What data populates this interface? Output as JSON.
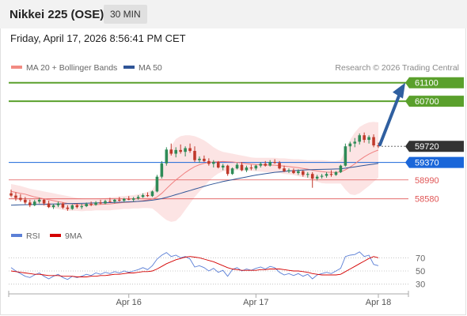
{
  "header": {
    "title": "Nikkei 225 (OSE)",
    "timeframe": "30 MIN"
  },
  "datetime": "Friday, April 17, 2026 8:56:41 PM CET",
  "legend": {
    "bb_label": "MA 20 + Bollinger Bands",
    "bb_color": "#f28b82",
    "ma50_label": "MA 50",
    "ma50_color": "#2f5597"
  },
  "credit": "Research © 2026 Trading Central",
  "rsi_legend": {
    "rsi_label": "RSI",
    "rsi_color": "#5b7fd6",
    "ma_label": "9MA",
    "ma_color": "#d40000"
  },
  "chart_data": {
    "type": "candlestick",
    "price_range": [
      58300,
      61250
    ],
    "levels": {
      "resistance": [
        61100,
        60700
      ],
      "current": 59720,
      "pivot": 59370,
      "support": [
        58990,
        58580
      ]
    },
    "level_labels": {
      "r2": "61100",
      "r1": "60700",
      "current": "59720",
      "pivot": "59370",
      "s1": "58990",
      "s2": "58580"
    },
    "colors": {
      "resistance": "#5aa02c",
      "pivot": "#1a66d9",
      "support": "#e05555",
      "current": "#333333",
      "up": "#2e8b57",
      "down": "#c0392b",
      "arrow": "#2f5fa0"
    },
    "x_labels": [
      "Apr 16",
      "Apr 17",
      "Apr 18"
    ],
    "ohlc": [
      [
        58700,
        58780,
        58620,
        58650
      ],
      [
        58650,
        58720,
        58540,
        58600
      ],
      [
        58600,
        58680,
        58520,
        58560
      ],
      [
        58560,
        58620,
        58460,
        58500
      ],
      [
        58500,
        58560,
        58400,
        58440
      ],
      [
        58440,
        58560,
        58420,
        58520
      ],
      [
        58520,
        58600,
        58480,
        58560
      ],
      [
        58560,
        58580,
        58440,
        58480
      ],
      [
        58480,
        58540,
        58380,
        58400
      ],
      [
        58400,
        58470,
        58360,
        58440
      ],
      [
        58440,
        58520,
        58400,
        58480
      ],
      [
        58480,
        58500,
        58360,
        58390
      ],
      [
        58390,
        58440,
        58320,
        58360
      ],
      [
        58360,
        58460,
        58340,
        58440
      ],
      [
        58440,
        58480,
        58370,
        58400
      ],
      [
        58400,
        58470,
        58360,
        58420
      ],
      [
        58420,
        58500,
        58400,
        58470
      ],
      [
        58470,
        58520,
        58420,
        58450
      ],
      [
        58450,
        58530,
        58430,
        58500
      ],
      [
        58500,
        58560,
        58460,
        58480
      ],
      [
        58480,
        58560,
        58460,
        58530
      ],
      [
        58530,
        58600,
        58500,
        58520
      ],
      [
        58520,
        58580,
        58480,
        58560
      ],
      [
        58560,
        58620,
        58520,
        58540
      ],
      [
        58540,
        58600,
        58500,
        58580
      ],
      [
        58580,
        58640,
        58550,
        58560
      ],
      [
        58560,
        58620,
        58520,
        58590
      ],
      [
        58590,
        58660,
        58560,
        58620
      ],
      [
        58620,
        58700,
        58600,
        58660
      ],
      [
        58660,
        58720,
        58620,
        58640
      ],
      [
        58640,
        58760,
        58620,
        58740
      ],
      [
        58740,
        59100,
        58720,
        59060
      ],
      [
        59060,
        59400,
        59020,
        59350
      ],
      [
        59350,
        59700,
        59300,
        59650
      ],
      [
        59650,
        59780,
        59520,
        59560
      ],
      [
        59560,
        59700,
        59480,
        59640
      ],
      [
        59640,
        59760,
        59560,
        59600
      ],
      [
        59600,
        59720,
        59500,
        59680
      ],
      [
        59680,
        59780,
        59580,
        59620
      ],
      [
        59620,
        59720,
        59380,
        59420
      ],
      [
        59420,
        59500,
        59360,
        59450
      ],
      [
        59450,
        59520,
        59380,
        59400
      ],
      [
        59400,
        59460,
        59300,
        59340
      ],
      [
        59340,
        59420,
        59260,
        59380
      ],
      [
        59380,
        59400,
        59240,
        59260
      ],
      [
        59260,
        59340,
        59200,
        59300
      ],
      [
        59300,
        59320,
        59080,
        59120
      ],
      [
        59120,
        59260,
        59100,
        59240
      ],
      [
        59240,
        59360,
        59220,
        59320
      ],
      [
        59320,
        59380,
        59180,
        59200
      ],
      [
        59200,
        59300,
        59160,
        59260
      ],
      [
        59260,
        59320,
        59200,
        59240
      ],
      [
        59240,
        59320,
        59200,
        59300
      ],
      [
        59300,
        59380,
        59260,
        59340
      ],
      [
        59340,
        59400,
        59280,
        59300
      ],
      [
        59300,
        59420,
        59280,
        59380
      ],
      [
        59380,
        59440,
        59340,
        59360
      ],
      [
        59360,
        59400,
        59220,
        59240
      ],
      [
        59240,
        59300,
        59160,
        59180
      ],
      [
        59180,
        59240,
        59140,
        59200
      ],
      [
        59200,
        59240,
        59120,
        59140
      ],
      [
        59140,
        59220,
        59100,
        59180
      ],
      [
        59180,
        59200,
        59060,
        59100
      ],
      [
        59100,
        59160,
        59040,
        59120
      ],
      [
        59120,
        59160,
        58820,
        59020
      ],
      [
        59020,
        59100,
        58980,
        59060
      ],
      [
        59060,
        59120,
        59020,
        59080
      ],
      [
        59080,
        59160,
        59040,
        59120
      ],
      [
        59120,
        59200,
        59060,
        59100
      ],
      [
        59100,
        59180,
        59080,
        59160
      ],
      [
        59160,
        59320,
        59140,
        59300
      ],
      [
        59300,
        59780,
        59280,
        59720
      ],
      [
        59720,
        59820,
        59600,
        59780
      ],
      [
        59780,
        59900,
        59700,
        59820
      ],
      [
        59820,
        60000,
        59760,
        59960
      ],
      [
        59960,
        60020,
        59800,
        59860
      ],
      [
        59860,
        59960,
        59780,
        59920
      ],
      [
        59920,
        59980,
        59700,
        59740
      ],
      [
        59740,
        59800,
        59680,
        59720
      ]
    ],
    "ma20": [
      58740,
      58720,
      58700,
      58680,
      58650,
      58620,
      58600,
      58580,
      58560,
      58540,
      58520,
      58500,
      58480,
      58470,
      58460,
      58450,
      58450,
      58450,
      58455,
      58460,
      58465,
      58470,
      58480,
      58490,
      58500,
      58505,
      58515,
      58525,
      58540,
      58555,
      58575,
      58620,
      58700,
      58800,
      58900,
      58990,
      59070,
      59150,
      59220,
      59280,
      59320,
      59350,
      59370,
      59380,
      59385,
      59390,
      59385,
      59380,
      59370,
      59360,
      59345,
      59335,
      59325,
      59320,
      59315,
      59312,
      59310,
      59300,
      59290,
      59280,
      59268,
      59255,
      59240,
      59225,
      59200,
      59185,
      59170,
      59160,
      59155,
      59155,
      59165,
      59210,
      59270,
      59340,
      59420,
      59490,
      59550,
      59600,
      59640
    ],
    "bb_upper": [
      58900,
      58880,
      58860,
      58830,
      58800,
      58780,
      58760,
      58740,
      58720,
      58700,
      58680,
      58660,
      58640,
      58620,
      58600,
      58590,
      58580,
      58580,
      58580,
      58590,
      58600,
      58610,
      58620,
      58630,
      58640,
      58650,
      58660,
      58680,
      58700,
      58730,
      58780,
      58950,
      59200,
      59480,
      59720,
      59880,
      59940,
      59960,
      59960,
      59940,
      59900,
      59850,
      59780,
      59700,
      59640,
      59600,
      59580,
      59560,
      59540,
      59520,
      59500,
      59480,
      59470,
      59470,
      59470,
      59470,
      59470,
      59460,
      59460,
      59450,
      59440,
      59440,
      59430,
      59420,
      59420,
      59420,
      59420,
      59410,
      59400,
      59400,
      59420,
      59640,
      59860,
      60020,
      60140,
      60200,
      60240,
      60250,
      60240
    ],
    "bb_lower": [
      58580,
      58560,
      58540,
      58530,
      58500,
      58460,
      58440,
      58420,
      58400,
      58380,
      58360,
      58340,
      58320,
      58320,
      58320,
      58310,
      58320,
      58320,
      58330,
      58330,
      58330,
      58330,
      58340,
      58350,
      58360,
      58360,
      58370,
      58370,
      58380,
      58380,
      58370,
      58290,
      58200,
      58120,
      58080,
      58100,
      58200,
      58340,
      58480,
      58620,
      58740,
      58850,
      58960,
      59060,
      59130,
      59180,
      59190,
      59200,
      59200,
      59200,
      59190,
      59190,
      59180,
      59170,
      59160,
      59155,
      59150,
      59140,
      59120,
      59110,
      59096,
      59070,
      59050,
      59030,
      58980,
      58950,
      58920,
      58910,
      58910,
      58910,
      58910,
      58780,
      58680,
      58660,
      58700,
      58780,
      58860,
      58950,
      59040
    ],
    "ma50": [
      58440,
      58445,
      58450,
      58452,
      58455,
      58458,
      58460,
      58462,
      58465,
      58468,
      58470,
      58472,
      58475,
      58478,
      58480,
      58482,
      58485,
      58488,
      58490,
      58492,
      58495,
      58498,
      58500,
      58505,
      58510,
      58515,
      58520,
      58525,
      58530,
      58540,
      58550,
      58565,
      58585,
      58610,
      58640,
      58670,
      58700,
      58730,
      58760,
      58790,
      58820,
      58850,
      58880,
      58905,
      58930,
      58955,
      58975,
      58995,
      59015,
      59035,
      59055,
      59075,
      59095,
      59110,
      59125,
      59140,
      59155,
      59165,
      59175,
      59185,
      59192,
      59198,
      59205,
      59210,
      59215,
      59218,
      59220,
      59222,
      59225,
      59228,
      59232,
      59245,
      59260,
      59275,
      59290,
      59305,
      59320,
      59335,
      59350
    ],
    "rsi_ticks": [
      70,
      50,
      30
    ],
    "rsi_range": [
      20,
      80
    ],
    "rsi": [
      55,
      50,
      46,
      42,
      40,
      44,
      47,
      42,
      38,
      42,
      45,
      40,
      37,
      42,
      40,
      42,
      45,
      43,
      47,
      45,
      48,
      46,
      49,
      47,
      50,
      48,
      50,
      52,
      55,
      52,
      58,
      68,
      74,
      78,
      72,
      74,
      70,
      72,
      68,
      56,
      58,
      55,
      50,
      54,
      48,
      51,
      42,
      52,
      55,
      50,
      53,
      51,
      54,
      56,
      53,
      57,
      55,
      48,
      44,
      46,
      43,
      46,
      42,
      45,
      38,
      44,
      46,
      48,
      46,
      50,
      54,
      72,
      74,
      75,
      79,
      72,
      74,
      60,
      58
    ],
    "rsi_ma": [
      50,
      49,
      48,
      47,
      46,
      45,
      45,
      44,
      43,
      43,
      43,
      42,
      42,
      42,
      41,
      41,
      41,
      42,
      42,
      43,
      43,
      44,
      45,
      45,
      46,
      47,
      47,
      48,
      49,
      49,
      50,
      53,
      57,
      61,
      64,
      67,
      69,
      71,
      72,
      71,
      70,
      68,
      66,
      64,
      61,
      58,
      55,
      53,
      52,
      51,
      51,
      51,
      51,
      52,
      52,
      53,
      53,
      53,
      52,
      51,
      50,
      50,
      49,
      48,
      46,
      45,
      44,
      44,
      44,
      44,
      45,
      49,
      53,
      57,
      61,
      65,
      69,
      72,
      70
    ]
  }
}
